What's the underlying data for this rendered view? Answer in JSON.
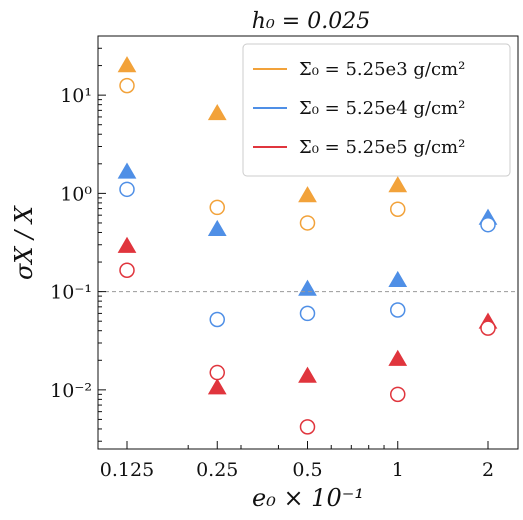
{
  "chart_data": {
    "type": "scatter",
    "title": "h₀ = 0.025",
    "xlabel": "e₀ × 10⁻¹",
    "ylabel": "σX / X",
    "x_scale": "log",
    "y_scale": "log",
    "categories": [
      "0.125",
      "0.25",
      "0.5",
      "1",
      "2"
    ],
    "x": [
      0.125,
      0.25,
      0.5,
      1,
      2
    ],
    "ylim": [
      0.0025,
      40
    ],
    "y_ticks": [
      {
        "value": 0.01,
        "label": "10⁻²"
      },
      {
        "value": 0.1,
        "label": "10⁻¹"
      },
      {
        "value": 1,
        "label": "10⁰"
      },
      {
        "value": 10,
        "label": "10¹"
      }
    ],
    "reference_line": {
      "y": 0.1,
      "style": "dashed",
      "color": "#9a9a9a"
    },
    "legend_position": "top-right",
    "grid": false,
    "series": [
      {
        "name": "Σ₀ = 5.25e3 g/cm²",
        "color": "#f2a23a",
        "triangles": [
          20,
          6.5,
          0.95,
          1.2,
          null
        ],
        "circles": [
          12.5,
          0.72,
          0.5,
          0.69,
          null
        ]
      },
      {
        "name": "Σ₀ = 5.25e4 g/cm²",
        "color": "#4f8fe6",
        "triangles": [
          1.65,
          0.43,
          0.106,
          0.13,
          0.56
        ],
        "circles": [
          1.1,
          0.052,
          0.06,
          0.065,
          0.48
        ]
      },
      {
        "name": "Σ₀ = 5.25e5 g/cm²",
        "color": "#e0353d",
        "triangles": [
          0.29,
          0.0105,
          0.0138,
          0.0205,
          0.049
        ],
        "circles": [
          0.165,
          0.015,
          0.0042,
          0.009,
          0.0425
        ]
      }
    ]
  }
}
